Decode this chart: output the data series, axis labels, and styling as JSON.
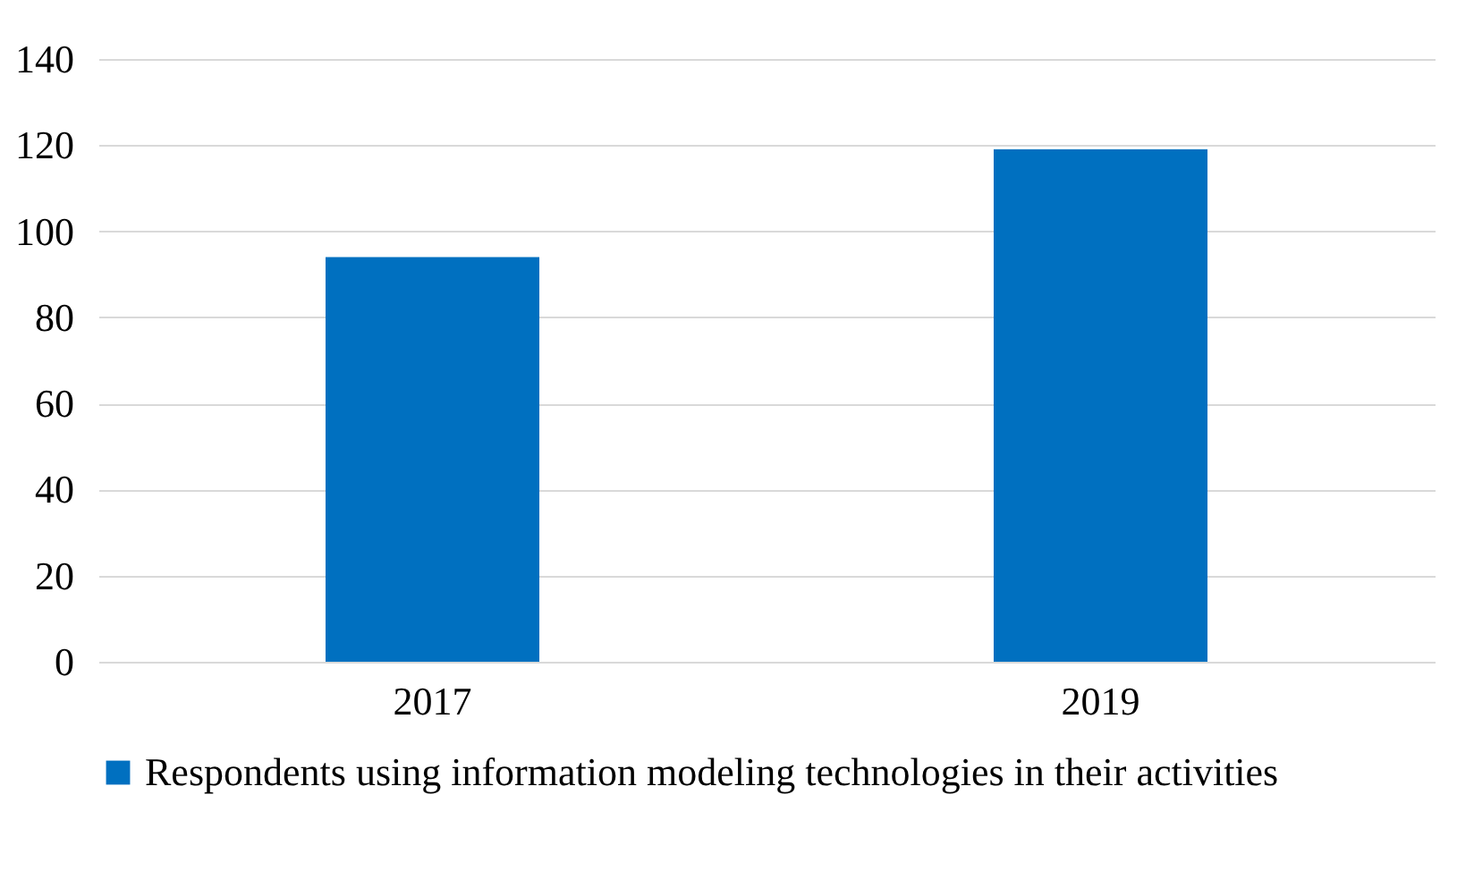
{
  "chart_data": {
    "type": "bar",
    "categories": [
      "2017",
      "2019"
    ],
    "series": [
      {
        "name": "Respondents using information modeling technologies in their activities",
        "color": "#0070c0",
        "values": [
          94,
          119
        ]
      }
    ],
    "ylim": [
      0,
      140
    ],
    "yticks": [
      0,
      20,
      40,
      60,
      80,
      100,
      120,
      140
    ],
    "grid": "y",
    "legend": "bottom"
  }
}
